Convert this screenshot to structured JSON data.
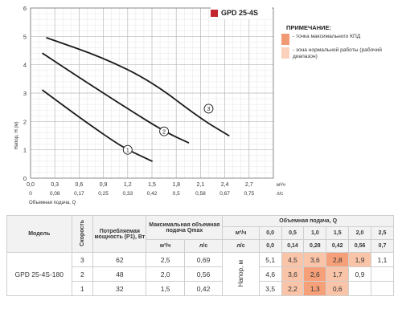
{
  "chart_data": {
    "type": "line",
    "title": "GPD 25-4S",
    "ylabel": "Напор, H (м)",
    "xlabel_top_unit": "м³/ч",
    "xlabel_bottom": "Объемная подача, Q",
    "xlabel_bottom_unit": "л/с",
    "ylim": [
      0,
      6
    ],
    "xlim": [
      0,
      3
    ],
    "yticks": [
      "0",
      "1",
      "2",
      "3",
      "4",
      "5",
      "6"
    ],
    "xticks_top": [
      "0,0",
      "0,3",
      "0,6",
      "0,9",
      "1,2",
      "1,5",
      "1,8",
      "2,1",
      "2,4",
      "2,7"
    ],
    "xticks_bottom": [
      "0",
      "0,08",
      "0,17",
      "0,25",
      "0,33",
      "0,42",
      "0,5",
      "0,58",
      "0,67",
      "0,75"
    ],
    "grid": true,
    "series": [
      {
        "name": "1",
        "x": [
          0.15,
          0.6,
          1.0,
          1.2,
          1.5
        ],
        "y": [
          3.1,
          2.15,
          1.35,
          1.0,
          0.6
        ]
      },
      {
        "name": "2",
        "x": [
          0.15,
          0.6,
          1.2,
          1.65,
          1.95
        ],
        "y": [
          4.4,
          3.55,
          2.45,
          1.65,
          1.25
        ]
      },
      {
        "name": "3",
        "x": [
          0.2,
          0.9,
          1.5,
          2.1,
          2.45
        ],
        "y": [
          4.95,
          4.25,
          3.4,
          2.1,
          1.5
        ]
      }
    ],
    "curve_labels": [
      {
        "label": "1",
        "x": 1.2,
        "y": 1.0
      },
      {
        "label": "2",
        "x": 1.65,
        "y": 1.65
      },
      {
        "label": "3",
        "x": 2.2,
        "y": 2.45
      }
    ]
  },
  "note": {
    "title": "ПРИМЕЧАНИЕ:",
    "items": [
      {
        "text": "- точка максимального КПД",
        "color": "#f29a73"
      },
      {
        "text": "- зона нормальной работы (рабочий диапазон)",
        "color": "#fbd1bc"
      }
    ]
  },
  "table": {
    "headers": {
      "model": "Модель",
      "speed": "Скорость",
      "power": "Потребляемая мощность (P1), Вт",
      "qmax": "Максимальная объемная подача Qmax",
      "qmax_m3": "м³/ч",
      "qmax_ls": "л/с",
      "flow": "Объемная подача, Q",
      "flow_m3": "м³/ч",
      "flow_ls": "л/с",
      "head": "Напор, м"
    },
    "flow_m3": [
      "0,0",
      "0,5",
      "1,0",
      "1,5",
      "2,0",
      "2,5"
    ],
    "flow_ls": [
      "0,0",
      "0,14",
      "0,28",
      "0,42",
      "0,56",
      "0,7"
    ],
    "model": "GPD 25-4S-180",
    "rows": [
      {
        "speed": "3",
        "power": "62",
        "qm3": "2,5",
        "qls": "0,69",
        "heads": [
          "5,1",
          "4,5",
          "3,6",
          "2,8",
          "1,9",
          "1,1"
        ],
        "hl": [
          "",
          "hmid",
          "hmid",
          "hmax",
          "hmid",
          ""
        ]
      },
      {
        "speed": "2",
        "power": "48",
        "qm3": "2,0",
        "qls": "0,56",
        "heads": [
          "4,6",
          "3,6",
          "2,6",
          "1,7",
          "0,9",
          ""
        ],
        "hl": [
          "",
          "hmid",
          "hmax",
          "hmid",
          "",
          ""
        ]
      },
      {
        "speed": "1",
        "power": "32",
        "qm3": "1,5",
        "qls": "0,42",
        "heads": [
          "3,5",
          "2,2",
          "1,3",
          "0,6",
          "",
          ""
        ],
        "hl": [
          "",
          "hmid",
          "hmax",
          "hmid",
          "",
          ""
        ]
      }
    ]
  }
}
